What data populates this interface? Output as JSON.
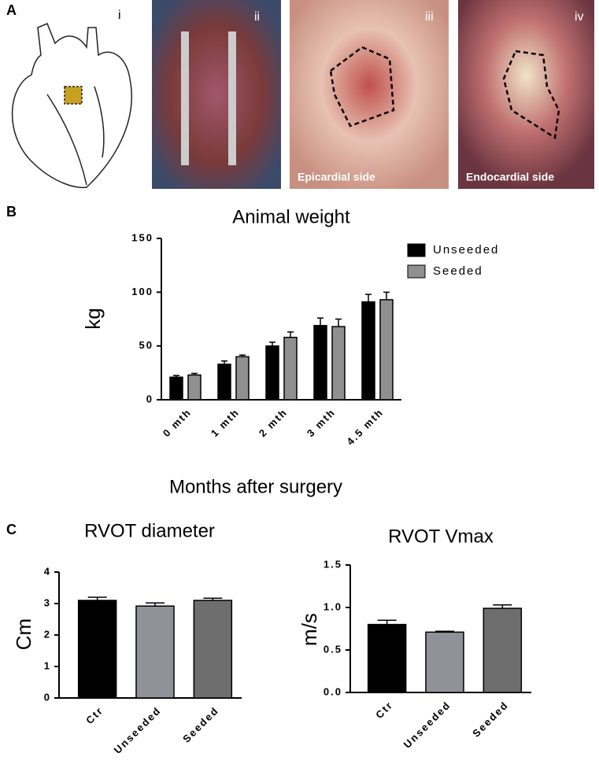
{
  "panels": {
    "A": {
      "letter": "A",
      "images": [
        "i",
        "ii",
        "iii",
        "iv"
      ],
      "captions": {
        "iii": "Epicardial side",
        "iv": "Endocardial side"
      }
    },
    "B": {
      "letter": "B"
    },
    "C": {
      "letter": "C"
    }
  },
  "chart_data": [
    {
      "type": "bar",
      "title": "Animal weight",
      "ylabel": "kg",
      "xlabel": "Months after surgery",
      "categories": [
        "0 mth",
        "1 mth",
        "2 mth",
        "3 mth",
        "4.5 mth"
      ],
      "series": [
        {
          "name": "Unseeded",
          "color": "#000000",
          "values": [
            21,
            33,
            50,
            69,
            91
          ],
          "errors": [
            1.5,
            3,
            3.5,
            7,
            7
          ]
        },
        {
          "name": "Seeded",
          "color": "#909090",
          "values": [
            23,
            40,
            58,
            68,
            93
          ],
          "errors": [
            1.5,
            1.5,
            5,
            7,
            7
          ]
        }
      ],
      "ylim": [
        0,
        150
      ],
      "yticks": [
        0,
        50,
        100,
        150
      ],
      "legend": "upper right"
    },
    {
      "type": "bar",
      "title": "RVOT diameter",
      "ylabel": "Cm",
      "categories": [
        "Ctr",
        "Unseeded",
        "Seeded"
      ],
      "values": [
        3.1,
        2.92,
        3.1
      ],
      "errors": [
        0.1,
        0.1,
        0.07
      ],
      "colors": [
        "#000000",
        "#919199",
        "#6e6e6e"
      ],
      "ylim": [
        0,
        4
      ],
      "yticks": [
        0,
        1,
        2,
        3,
        4
      ]
    },
    {
      "type": "bar",
      "title": "RVOT Vmax",
      "ylabel": "m/s",
      "categories": [
        "Ctr",
        "Unseeded",
        "Seeded"
      ],
      "values": [
        0.8,
        0.71,
        0.99
      ],
      "errors": [
        0.05,
        0.01,
        0.04
      ],
      "colors": [
        "#000000",
        "#919199",
        "#6e6e6e"
      ],
      "ylim": [
        0,
        1.5
      ],
      "yticks": [
        {
          "value": 0,
          "label": "0.0"
        },
        0.5,
        {
          "value": 1,
          "label": "1.0"
        },
        1.5
      ]
    }
  ]
}
